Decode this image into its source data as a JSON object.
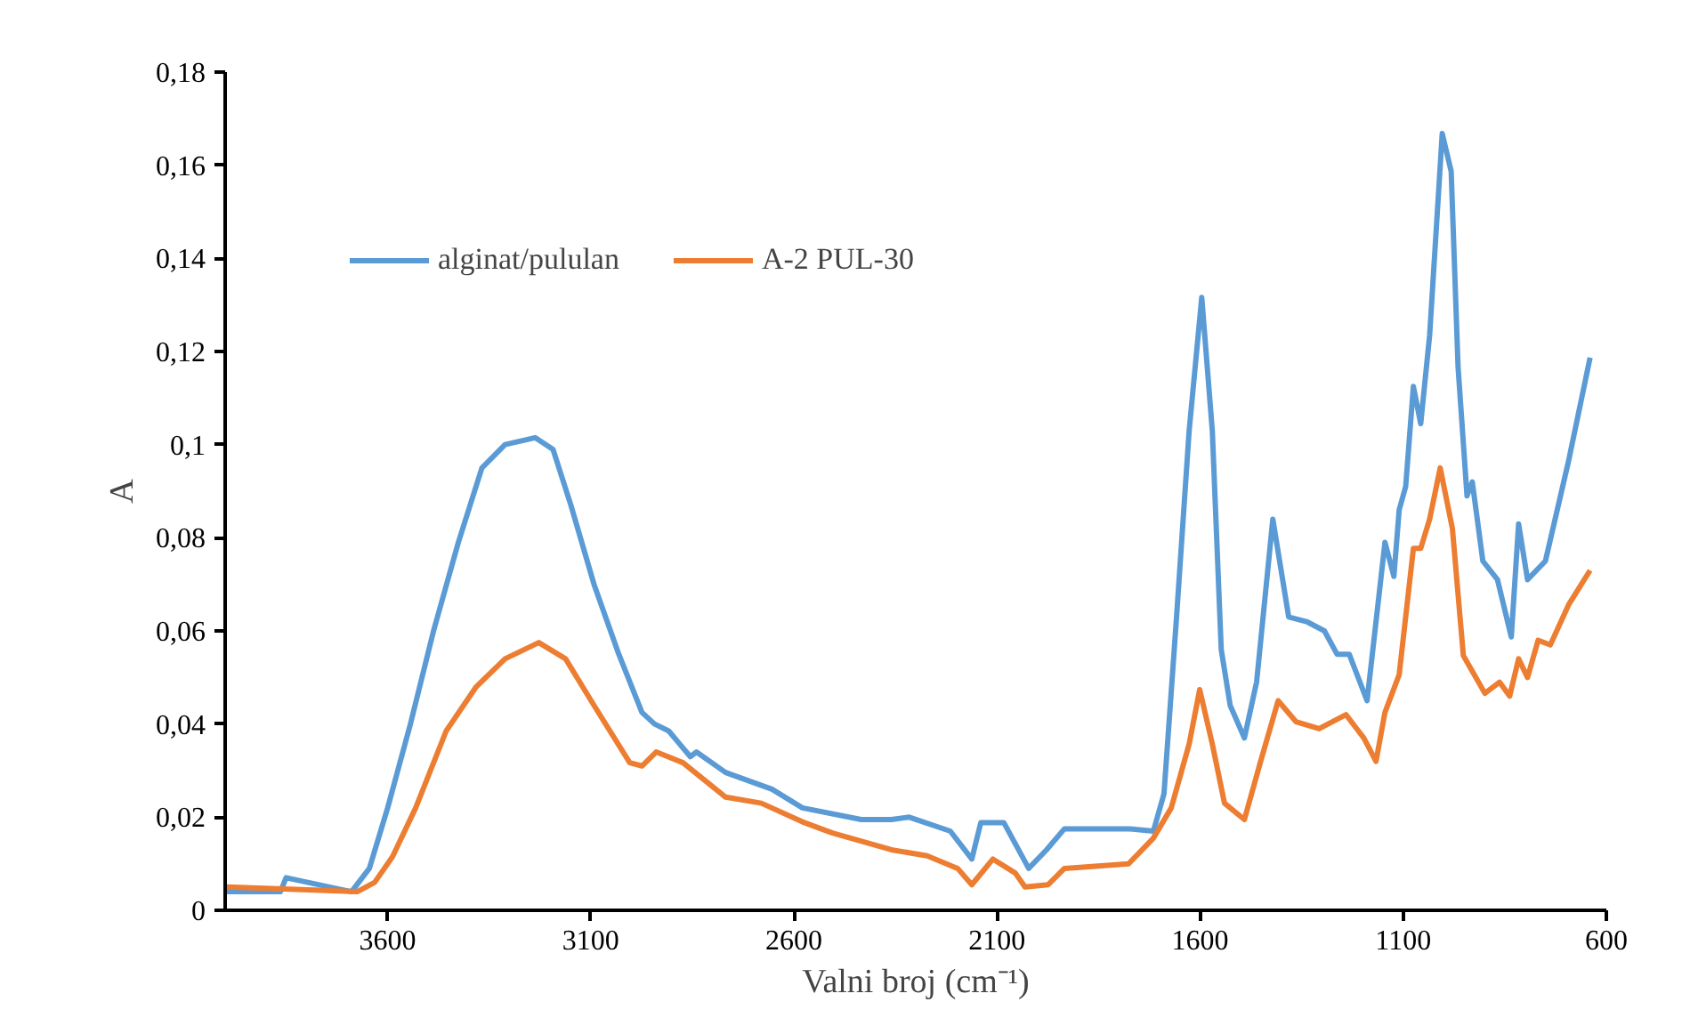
{
  "chart_data": {
    "type": "line",
    "xlabel": "Valni broj (cm⁻¹)",
    "ylabel": "A",
    "xlim": [
      4000,
      600
    ],
    "xticks": [
      3600,
      3100,
      2600,
      2100,
      1600,
      1100,
      600
    ],
    "ylim": [
      0,
      0.18
    ],
    "yticks": [
      0,
      {
        "value": 0.02,
        "label": "0,02"
      },
      {
        "value": 0.04,
        "label": "0,04"
      },
      {
        "value": 0.06,
        "label": "0,06"
      },
      {
        "value": 0.08,
        "label": "0,08"
      },
      {
        "value": 0.1,
        "label": "0,1"
      },
      {
        "value": 0.12,
        "label": "0,12"
      },
      {
        "value": 0.14,
        "label": "0,14"
      },
      {
        "value": 0.16,
        "label": "0,16"
      },
      {
        "value": 0.18,
        "label": "0,18"
      }
    ],
    "grid": false,
    "legend": "top left",
    "line_style": "solid",
    "marker": "none",
    "series": [
      {
        "name": "alginat/pululan",
        "color": "#5b9bd5",
        "x": [
          3996,
          3864,
          3850,
          3689,
          3645,
          3600,
          3544,
          3487,
          3426,
          3368,
          3311,
          3237,
          3193,
          3149,
          3092,
          3031,
          2974,
          2943,
          2908,
          2855,
          2840,
          2768,
          2654,
          2579,
          2434,
          2360,
          2316,
          2215,
          2162,
          2140,
          2083,
          2022,
          1978,
          1934,
          1776,
          1715,
          1689,
          1658,
          1627,
          1596,
          1570,
          1548,
          1526,
          1491,
          1461,
          1421,
          1382,
          1338,
          1294,
          1263,
          1233,
          1189,
          1145,
          1123,
          1110,
          1094,
          1075,
          1057,
          1035,
          1004,
          982,
          965,
          943,
          930,
          904,
          868,
          834,
          816,
          794,
          750,
          693,
          640
        ],
        "values": [
          0.004,
          0.004,
          0.007,
          0.004,
          0.009,
          0.022,
          0.04,
          0.06,
          0.079,
          0.095,
          0.1,
          0.1015,
          0.099,
          0.087,
          0.07,
          0.055,
          0.0425,
          0.04,
          0.0385,
          0.033,
          0.034,
          0.0296,
          0.026,
          0.022,
          0.0195,
          0.0195,
          0.02,
          0.017,
          0.011,
          0.0188,
          0.0188,
          0.009,
          0.013,
          0.0175,
          0.0175,
          0.017,
          0.025,
          0.063,
          0.103,
          0.1316,
          0.103,
          0.056,
          0.044,
          0.037,
          0.049,
          0.084,
          0.063,
          0.062,
          0.06,
          0.055,
          0.055,
          0.045,
          0.079,
          0.0717,
          0.086,
          0.091,
          0.1125,
          0.1045,
          0.1235,
          0.1668,
          0.1587,
          0.1166,
          0.089,
          0.092,
          0.075,
          0.071,
          0.0587,
          0.083,
          0.071,
          0.075,
          0.0965,
          0.1187
        ]
      },
      {
        "name": "A-2 PUL-30",
        "color": "#ed7d31",
        "x": [
          3996,
          3825,
          3675,
          3632,
          3588,
          3531,
          3456,
          3382,
          3311,
          3228,
          3162,
          3092,
          3004,
          2974,
          2939,
          2873,
          2768,
          2680,
          2579,
          2505,
          2360,
          2272,
          2197,
          2162,
          2110,
          2055,
          2031,
          1974,
          1934,
          1776,
          1715,
          1671,
          1627,
          1601,
          1570,
          1540,
          1491,
          1452,
          1408,
          1364,
          1307,
          1241,
          1197,
          1167,
          1145,
          1110,
          1075,
          1057,
          1035,
          1009,
          979,
          952,
          899,
          863,
          838,
          816,
          794,
          768,
          738,
          693,
          640
        ],
        "values": [
          0.005,
          0.0045,
          0.004,
          0.006,
          0.0115,
          0.022,
          0.0385,
          0.048,
          0.054,
          0.0575,
          0.054,
          0.044,
          0.0317,
          0.031,
          0.034,
          0.0317,
          0.0243,
          0.023,
          0.019,
          0.0166,
          0.013,
          0.0117,
          0.009,
          0.0055,
          0.011,
          0.008,
          0.005,
          0.0055,
          0.009,
          0.01,
          0.0155,
          0.022,
          0.0357,
          0.0474,
          0.0357,
          0.023,
          0.0195,
          0.0317,
          0.045,
          0.0405,
          0.039,
          0.042,
          0.037,
          0.032,
          0.0425,
          0.0506,
          0.0777,
          0.0777,
          0.084,
          0.095,
          0.082,
          0.0547,
          0.0466,
          0.049,
          0.046,
          0.054,
          0.05,
          0.058,
          0.057,
          0.0656,
          0.073
        ]
      }
    ]
  }
}
